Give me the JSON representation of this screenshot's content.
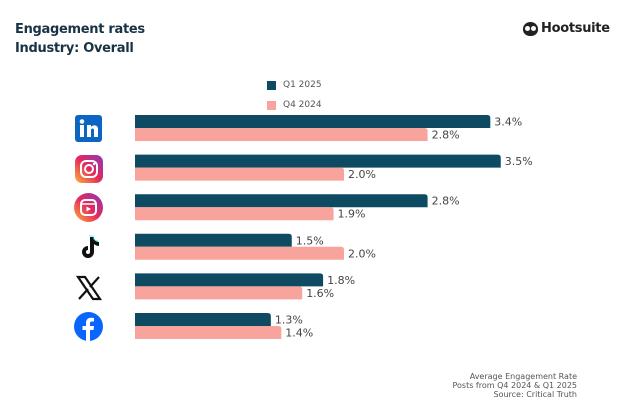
{
  "header": {
    "title": "Engagement rates",
    "subtitle": "Industry: Overall",
    "logo": "Hootsuite"
  },
  "footer": {
    "line1": "Average Engagement Rate",
    "line2": "Posts from Q4 2024 & Q1 2025",
    "line3": "Source: Critical Truth"
  },
  "chart_data": {
    "type": "bar",
    "orientation": "horizontal",
    "categories": [
      "LinkedIn",
      "Instagram",
      "Instagram Reels",
      "TikTok",
      "X",
      "Facebook"
    ],
    "category_icons": [
      "linkedin-icon",
      "instagram-icon",
      "instagram-reels-icon",
      "tiktok-icon",
      "x-icon",
      "facebook-icon"
    ],
    "series": [
      {
        "name": "Q1 2025",
        "color": "#0e4a62",
        "values": [
          3.4,
          3.5,
          2.8,
          1.5,
          1.8,
          1.3
        ],
        "labels": [
          "3.4%",
          "3.5%",
          "2.8%",
          "1.5%",
          "1.8%",
          "1.3%"
        ]
      },
      {
        "name": "Q4 2024",
        "color": "#f8a39b",
        "values": [
          2.8,
          2.0,
          1.9,
          2.0,
          1.6,
          1.4
        ],
        "labels": [
          "2.8%",
          "2.0%",
          "1.9%",
          "2.0%",
          "1.6%",
          "1.4%"
        ]
      }
    ],
    "xlim": [
      0,
      3.5
    ],
    "grid": false,
    "legend": "top-center",
    "unit": "%"
  }
}
